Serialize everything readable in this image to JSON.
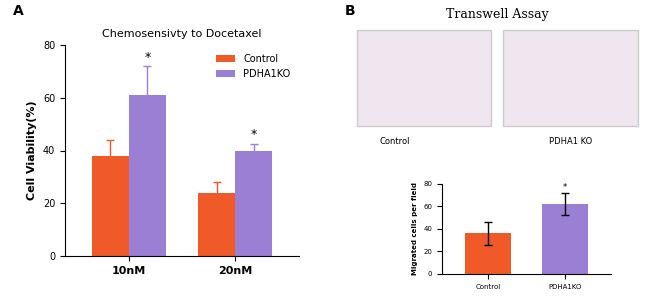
{
  "chart_data": [
    {
      "type": "bar",
      "title": "Chemosensivty to Docetaxel",
      "y_label": "Cell Viability(%)",
      "categories": [
        "10nM",
        "20nM"
      ],
      "series": [
        {
          "name": "Control",
          "color": "#f05a28",
          "values": [
            38,
            24
          ],
          "errors": [
            6,
            4
          ]
        },
        {
          "name": "PDHA1KO",
          "color": "#9b7fd4",
          "values": [
            61,
            40
          ],
          "errors": [
            11,
            2.5
          ]
        }
      ],
      "annotations": [
        {
          "series": "PDHA1KO",
          "category": "10nM",
          "text": "*"
        },
        {
          "series": "PDHA1KO",
          "category": "20nM",
          "text": "*"
        }
      ],
      "ylim": [
        0,
        80
      ],
      "yticks": [
        0,
        20,
        40,
        60,
        80
      ],
      "legend": "upper right"
    },
    {
      "type": "bar",
      "y_label": "Migrated cells per field",
      "categories": [
        "Control",
        "PDHA1KO"
      ],
      "values": [
        36,
        62
      ],
      "errors": [
        10,
        10
      ],
      "colors": [
        "#f05a28",
        "#9b7fd4"
      ],
      "annotations": [
        {
          "category": "PDHA1KO",
          "text": "*"
        }
      ],
      "ylim": [
        0,
        80
      ],
      "yticks": [
        0,
        20,
        40,
        60,
        80
      ]
    }
  ],
  "panel_labels": [
    "A",
    "B"
  ],
  "image_panel": {
    "title": "Transwell Assay",
    "captions": [
      "Control",
      "PDHA1 KO"
    ]
  }
}
